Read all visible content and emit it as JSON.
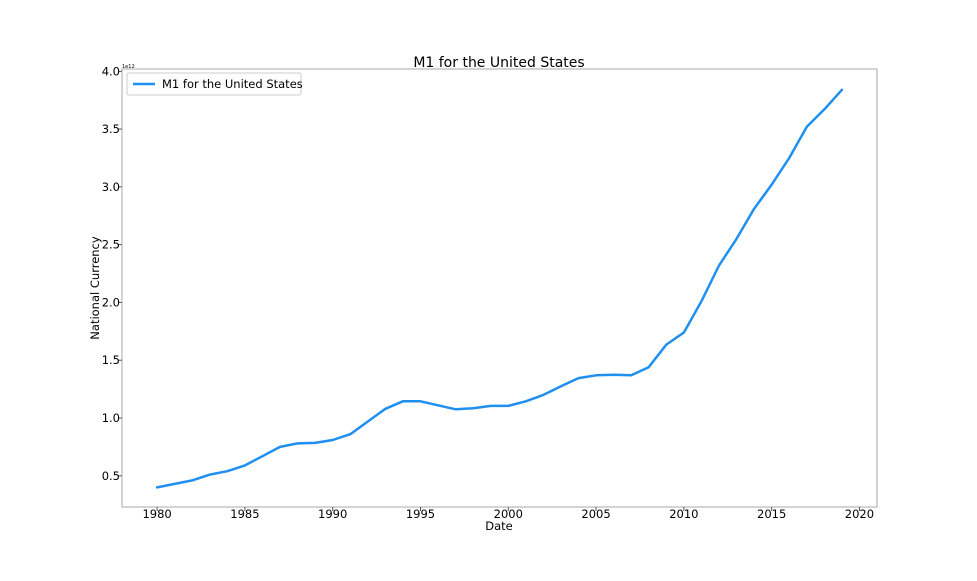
{
  "chart_data": {
    "type": "line",
    "title": "M1 for the United States",
    "xlabel": "Date",
    "ylabel": "National Currency",
    "y_offset_label": "1e12",
    "xlim": [
      1978,
      2021
    ],
    "ylim": [
      0.23,
      4.02
    ],
    "x_ticks": [
      1980,
      1985,
      1990,
      1995,
      2000,
      2005,
      2010,
      2015,
      2020
    ],
    "y_ticks": [
      0.5,
      1.0,
      1.5,
      2.0,
      2.5,
      3.0,
      3.5,
      4.0
    ],
    "x_tick_labels": [
      "1980",
      "1985",
      "1990",
      "1995",
      "2000",
      "2005",
      "2010",
      "2015",
      "2020"
    ],
    "y_tick_labels": [
      "0.5",
      "1.0",
      "1.5",
      "2.0",
      "2.5",
      "3.0",
      "3.5",
      "4.0"
    ],
    "grid": false,
    "legend_position": "upper-left",
    "series": [
      {
        "name": "M1 for the United States",
        "color": "#1f8ff0",
        "x": [
          1980,
          1981,
          1982,
          1983,
          1984,
          1985,
          1986,
          1987,
          1988,
          1989,
          1990,
          1991,
          1992,
          1993,
          1994,
          1995,
          1996,
          1997,
          1998,
          1999,
          2000,
          2001,
          2002,
          2003,
          2004,
          2005,
          2006,
          2007,
          2008,
          2009,
          2010,
          2011,
          2012,
          2013,
          2014,
          2015,
          2016,
          2017,
          2018,
          2019
        ],
        "values": [
          0.4,
          0.43,
          0.46,
          0.51,
          0.54,
          0.59,
          0.67,
          0.75,
          0.78,
          0.785,
          0.81,
          0.86,
          0.97,
          1.08,
          1.145,
          1.145,
          1.11,
          1.075,
          1.085,
          1.105,
          1.105,
          1.145,
          1.2,
          1.275,
          1.345,
          1.37,
          1.375,
          1.37,
          1.44,
          1.635,
          1.74,
          2.01,
          2.32,
          2.55,
          2.81,
          3.02,
          3.25,
          3.52,
          3.67,
          3.84
        ]
      }
    ]
  }
}
